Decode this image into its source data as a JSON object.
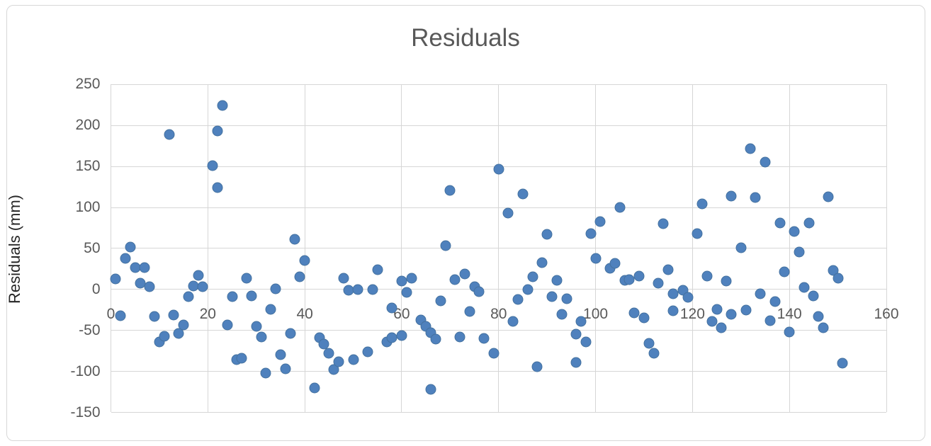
{
  "chart": {
    "title": "Residuals",
    "y_axis_title": "Residuals (mm)",
    "y_ticks": [
      250,
      200,
      150,
      100,
      50,
      0,
      -50,
      -100,
      -150
    ],
    "x_ticks": [
      0,
      20,
      40,
      60,
      80,
      100,
      120,
      140,
      160
    ]
  },
  "colors": {
    "marker_fill": "#4F81BD",
    "marker_border": "#44719f",
    "gridline": "#d6d6d6",
    "tick_label": "#595959",
    "title_text": "#595959",
    "axis_title_text": "#262626",
    "frame_border": "#d7d7d7",
    "background": "#ffffff"
  },
  "chart_data": {
    "type": "scatter",
    "title": "Residuals",
    "xlabel": "",
    "ylabel": "Residuals (mm)",
    "xlim": [
      0,
      160
    ],
    "ylim": [
      -150,
      250
    ],
    "x_tick_step": 20,
    "y_tick_step": 50,
    "grid": true,
    "legend": false,
    "marker_color": "#4F81BD",
    "points": [
      [
        1,
        13
      ],
      [
        2,
        -32
      ],
      [
        3,
        38
      ],
      [
        4,
        52
      ],
      [
        5,
        27
      ],
      [
        6,
        8
      ],
      [
        7,
        27
      ],
      [
        8,
        3
      ],
      [
        9,
        -33
      ],
      [
        10,
        -64
      ],
      [
        11,
        -57
      ],
      [
        12,
        189
      ],
      [
        13,
        -31
      ],
      [
        14,
        -54
      ],
      [
        15,
        -43
      ],
      [
        16,
        -9
      ],
      [
        17,
        4
      ],
      [
        18,
        17
      ],
      [
        19,
        3
      ],
      [
        21,
        151
      ],
      [
        22,
        124
      ],
      [
        22,
        193
      ],
      [
        23,
        224
      ],
      [
        24,
        -43
      ],
      [
        25,
        -9
      ],
      [
        26,
        -86
      ],
      [
        27,
        -84
      ],
      [
        28,
        14
      ],
      [
        29,
        -8
      ],
      [
        30,
        -45
      ],
      [
        31,
        -58
      ],
      [
        32,
        -102
      ],
      [
        33,
        -24
      ],
      [
        34,
        1
      ],
      [
        35,
        -80
      ],
      [
        36,
        -97
      ],
      [
        37,
        -54
      ],
      [
        38,
        61
      ],
      [
        39,
        15
      ],
      [
        40,
        35
      ],
      [
        42,
        -120
      ],
      [
        43,
        -59
      ],
      [
        44,
        -67
      ],
      [
        45,
        -78
      ],
      [
        46,
        -98
      ],
      [
        47,
        -88
      ],
      [
        48,
        14
      ],
      [
        49,
        -1
      ],
      [
        50,
        -86
      ],
      [
        51,
        0
      ],
      [
        53,
        -76
      ],
      [
        54,
        0
      ],
      [
        55,
        24
      ],
      [
        57,
        -64
      ],
      [
        58,
        -59
      ],
      [
        58,
        -23
      ],
      [
        60,
        -56
      ],
      [
        60,
        10
      ],
      [
        61,
        -4
      ],
      [
        62,
        14
      ],
      [
        64,
        -37
      ],
      [
        65,
        -45
      ],
      [
        66,
        -53
      ],
      [
        67,
        -61
      ],
      [
        66,
        -122
      ],
      [
        68,
        -14
      ],
      [
        69,
        53
      ],
      [
        70,
        121
      ],
      [
        71,
        12
      ],
      [
        72,
        -58
      ],
      [
        73,
        19
      ],
      [
        74,
        -27
      ],
      [
        75,
        3
      ],
      [
        76,
        -3
      ],
      [
        77,
        -60
      ],
      [
        79,
        -78
      ],
      [
        80,
        147
      ],
      [
        82,
        93
      ],
      [
        83,
        -39
      ],
      [
        84,
        -12
      ],
      [
        85,
        116
      ],
      [
        86,
        0
      ],
      [
        87,
        15
      ],
      [
        88,
        -94
      ],
      [
        89,
        33
      ],
      [
        90,
        67
      ],
      [
        91,
        -9
      ],
      [
        92,
        11
      ],
      [
        93,
        -30
      ],
      [
        94,
        -11
      ],
      [
        96,
        -55
      ],
      [
        96,
        -89
      ],
      [
        97,
        -39
      ],
      [
        98,
        -64
      ],
      [
        99,
        68
      ],
      [
        100,
        38
      ],
      [
        101,
        83
      ],
      [
        103,
        26
      ],
      [
        104,
        32
      ],
      [
        105,
        100
      ],
      [
        106,
        11
      ],
      [
        107,
        12
      ],
      [
        108,
        -29
      ],
      [
        109,
        16
      ],
      [
        110,
        -35
      ],
      [
        111,
        -66
      ],
      [
        112,
        -78
      ],
      [
        113,
        8
      ],
      [
        114,
        80
      ],
      [
        115,
        24
      ],
      [
        116,
        -5
      ],
      [
        116,
        -26
      ],
      [
        118,
        -1
      ],
      [
        119,
        -10
      ],
      [
        121,
        68
      ],
      [
        122,
        104
      ],
      [
        123,
        16
      ],
      [
        124,
        -39
      ],
      [
        125,
        -24
      ],
      [
        126,
        -47
      ],
      [
        127,
        10
      ],
      [
        128,
        114
      ],
      [
        128,
        -30
      ],
      [
        130,
        51
      ],
      [
        131,
        -25
      ],
      [
        132,
        172
      ],
      [
        133,
        112
      ],
      [
        134,
        -5
      ],
      [
        135,
        155
      ],
      [
        136,
        -38
      ],
      [
        137,
        -15
      ],
      [
        138,
        81
      ],
      [
        139,
        21
      ],
      [
        140,
        -52
      ],
      [
        141,
        71
      ],
      [
        142,
        46
      ],
      [
        143,
        2
      ],
      [
        144,
        81
      ],
      [
        145,
        -8
      ],
      [
        146,
        -33
      ],
      [
        147,
        -47
      ],
      [
        148,
        113
      ],
      [
        149,
        23
      ],
      [
        150,
        14
      ],
      [
        151,
        -90
      ]
    ]
  }
}
